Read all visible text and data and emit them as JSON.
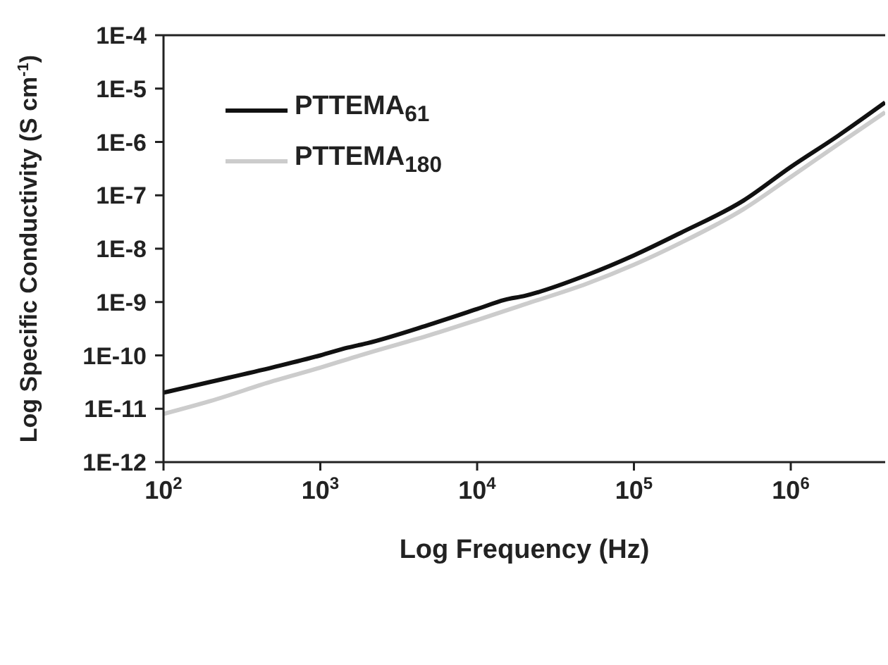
{
  "chart_data": {
    "type": "line",
    "xlabel": "Log Frequency (Hz)",
    "ylabel": "Log Specific Conductivity (S cm$^{-1}$)",
    "log": "xy",
    "grid": false,
    "legend": "top left",
    "marker": "none",
    "line_style": "solid",
    "xlim": [
      100,
      4000000
    ],
    "ylim": [
      1e-12,
      0.0001
    ],
    "xticks": [
      {
        "value": 100,
        "label": "10$^{2}$"
      },
      {
        "value": 1000,
        "label": "10$^{3}$"
      },
      {
        "value": 10000,
        "label": "10$^{4}$"
      },
      {
        "value": 100000,
        "label": "10$^{5}$"
      },
      {
        "value": 1000000,
        "label": "10$^{6}$"
      }
    ],
    "yticks": [
      {
        "value": 1e-12,
        "label": "1E-12"
      },
      {
        "value": 1e-11,
        "label": "1E-11"
      },
      {
        "value": 1e-10,
        "label": "1E-10"
      },
      {
        "value": 1e-09,
        "label": "1E-9"
      },
      {
        "value": 1e-08,
        "label": "1E-8"
      },
      {
        "value": 1e-07,
        "label": "1E-7"
      },
      {
        "value": 1e-06,
        "label": "1E-6"
      },
      {
        "value": 1e-05,
        "label": "1E-5"
      },
      {
        "value": 0.0001,
        "label": "1E-4"
      }
    ],
    "x": [
      100,
      200,
      500,
      1000,
      1500,
      2000,
      5000,
      10000,
      15000,
      20000,
      50000,
      100000,
      200000,
      500000,
      1000000,
      2000000,
      4000000
    ],
    "series": [
      {
        "name": "PTTEMA$_{61}$",
        "color": "#111111",
        "values": [
          2e-11,
          3.2e-11,
          6e-11,
          1e-10,
          1.4e-10,
          1.7e-10,
          3.8e-10,
          7.4e-10,
          1.1e-09,
          1.3e-09,
          3.2e-09,
          7.5e-09,
          2e-08,
          8e-08,
          3.4e-07,
          1.3e-06,
          5.5e-06
        ]
      },
      {
        "name": "PTTEMA$_{180}$",
        "color": "#cccccc",
        "values": [
          8e-12,
          1.4e-11,
          3.3e-11,
          5.9e-11,
          8.5e-11,
          1.1e-10,
          2.4e-10,
          4.6e-10,
          6.8e-10,
          9e-10,
          2.2e-09,
          5e-09,
          1.3e-08,
          5.5e-08,
          2.2e-07,
          9e-07,
          3.6e-06
        ]
      }
    ]
  }
}
